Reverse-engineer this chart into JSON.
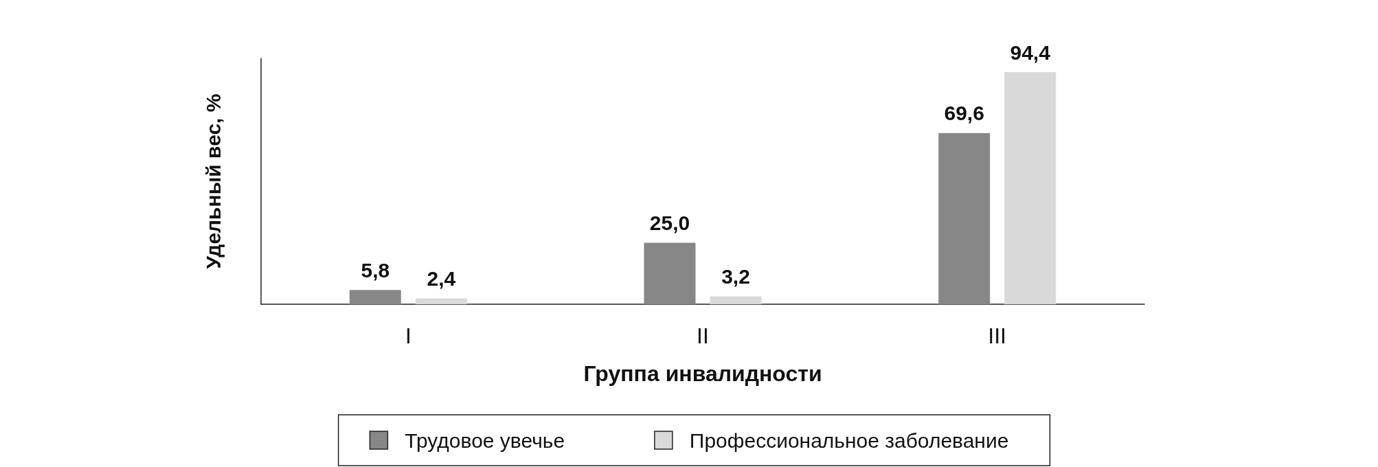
{
  "chart_data": {
    "type": "bar",
    "xlabel": "Группа инвалидности",
    "ylabel": "Удельный вес, %",
    "categories": [
      "I",
      "II",
      "III"
    ],
    "series": [
      {
        "name": "Трудовое увечье",
        "color": "#878787",
        "values": [
          5.8,
          25.0,
          69.6
        ],
        "value_labels": [
          "5,8",
          "25,0",
          "69,6"
        ]
      },
      {
        "name": "Профессиональное заболевание",
        "color": "#d9d9d9",
        "values": [
          2.4,
          3.2,
          94.4
        ],
        "value_labels": [
          "2,4",
          "3,2",
          "94,4"
        ]
      }
    ],
    "legend": "bottom",
    "grid": false,
    "tick_labels": "x"
  }
}
